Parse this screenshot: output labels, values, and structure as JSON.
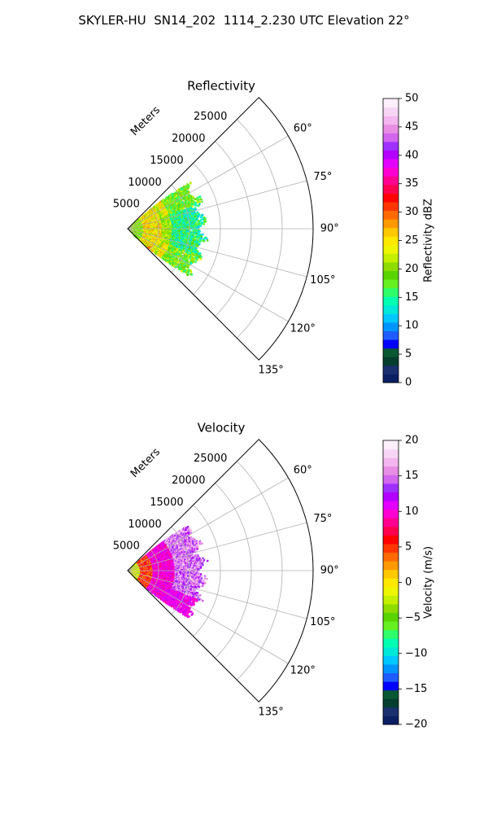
{
  "suptitle": "SKYLER-HU  SN14_202  1114_2.230 UTC Elevation 22°",
  "chart_data": [
    {
      "type": "heatmap",
      "subtype": "polar-sector",
      "title": "Reflectivity",
      "radial_label": "Meters",
      "radial_ticks": [
        "5000",
        "10000",
        "15000",
        "20000",
        "25000"
      ],
      "radial_tick_values": [
        5000,
        10000,
        15000,
        20000,
        25000
      ],
      "angular_ticks": [
        "60°",
        "75°",
        "90°",
        "105°",
        "120°",
        "135°"
      ],
      "angular_tick_values": [
        60,
        75,
        90,
        105,
        120,
        135
      ],
      "theta_range": [
        45,
        135
      ],
      "r_range": [
        0,
        30000
      ],
      "grid": true,
      "data_extent_r": [
        0,
        13000
      ],
      "data_extent_theta": [
        55,
        125
      ],
      "colorbar": {
        "label": "Reflectivity dBZ",
        "range": [
          0,
          50
        ],
        "ticks": [
          "0",
          "5",
          "10",
          "15",
          "20",
          "25",
          "30",
          "35",
          "40",
          "45",
          "50"
        ],
        "tick_values": [
          0,
          5,
          10,
          15,
          20,
          25,
          30,
          35,
          40,
          45,
          50
        ],
        "position": "right",
        "colors": [
          "#0b1f63",
          "#1a2f6e",
          "#053d2e",
          "#0a5733",
          "#0000ff",
          "#1e5cff",
          "#0094ff",
          "#00c8ff",
          "#00e8d8",
          "#00ffb0",
          "#2eff6a",
          "#66f022",
          "#59d400",
          "#8fdc00",
          "#c4f000",
          "#eef500",
          "#ffe800",
          "#ffc800",
          "#ff9900",
          "#ff6a00",
          "#ff3600",
          "#ff0000",
          "#ff0050",
          "#ff0090",
          "#ff00d2",
          "#e400ff",
          "#b400ff",
          "#a030ff",
          "#d266ee",
          "#e88ee4",
          "#f3b6ee",
          "#f7d6f5",
          "#fdeffc"
        ]
      }
    },
    {
      "type": "heatmap",
      "subtype": "polar-sector",
      "title": "Velocity",
      "radial_label": "Meters",
      "radial_ticks": [
        "5000",
        "10000",
        "15000",
        "20000",
        "25000"
      ],
      "radial_tick_values": [
        5000,
        10000,
        15000,
        20000,
        25000
      ],
      "angular_ticks": [
        "60°",
        "75°",
        "90°",
        "105°",
        "120°",
        "135°"
      ],
      "angular_tick_values": [
        60,
        75,
        90,
        105,
        120,
        135
      ],
      "theta_range": [
        45,
        135
      ],
      "r_range": [
        0,
        30000
      ],
      "grid": true,
      "data_extent_r": [
        0,
        13000
      ],
      "data_extent_theta": [
        55,
        125
      ],
      "colorbar": {
        "label": "Velocity (m/s)",
        "range": [
          -20,
          20
        ],
        "ticks": [
          "−20",
          "−15",
          "−10",
          "−5",
          "0",
          "5",
          "10",
          "15",
          "20"
        ],
        "tick_values": [
          -20,
          -15,
          -10,
          -5,
          0,
          5,
          10,
          15,
          20
        ],
        "position": "right",
        "colors": [
          "#0b1f63",
          "#1a2f6e",
          "#053d2e",
          "#0a5733",
          "#0000ff",
          "#1e5cff",
          "#0094ff",
          "#00c8ff",
          "#00e8d8",
          "#00ffb0",
          "#2eff6a",
          "#66f022",
          "#59d400",
          "#8fdc00",
          "#c4f000",
          "#eef500",
          "#ffe800",
          "#ffc800",
          "#ff9900",
          "#ff6a00",
          "#ff3600",
          "#ff0000",
          "#ff0050",
          "#ff0090",
          "#ff00d2",
          "#e400ff",
          "#b400ff",
          "#a030ff",
          "#d266ee",
          "#e88ee4",
          "#f3b6ee",
          "#f7d6f5",
          "#fdeffc"
        ]
      }
    }
  ]
}
